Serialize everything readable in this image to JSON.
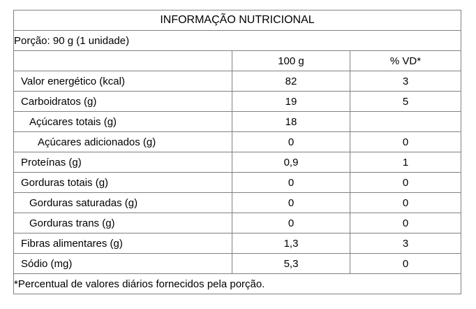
{
  "colors": {
    "border": "#808080",
    "text": "#000000",
    "background": "#ffffff"
  },
  "table": {
    "title": "INFORMAÇÃO NUTRICIONAL",
    "portion": "Porção: 90 g (1 unidade)",
    "columns": {
      "label": "",
      "per100": "100 g",
      "vd": "% VD*"
    },
    "rows": [
      {
        "label": "Valor energético (kcal)",
        "per100": "82",
        "vd": "3",
        "indent": 0
      },
      {
        "label": "Carboidratos (g)",
        "per100": "19",
        "vd": "5",
        "indent": 0
      },
      {
        "label": "Açúcares totais (g)",
        "per100": "18",
        "vd": "",
        "indent": 1
      },
      {
        "label": "Açúcares adicionados (g)",
        "per100": "0",
        "vd": "0",
        "indent": 2
      },
      {
        "label": "Proteínas (g)",
        "per100": "0,9",
        "vd": "1",
        "indent": 0
      },
      {
        "label": "Gorduras totais (g)",
        "per100": "0",
        "vd": "0",
        "indent": 0
      },
      {
        "label": "Gorduras saturadas (g)",
        "per100": "0",
        "vd": "0",
        "indent": 1
      },
      {
        "label": "Gorduras trans (g)",
        "per100": "0",
        "vd": "0",
        "indent": 1
      },
      {
        "label": "Fibras alimentares (g)",
        "per100": "1,3",
        "vd": "3",
        "indent": 0
      },
      {
        "label": "Sódio (mg)",
        "per100": "5,3",
        "vd": "0",
        "indent": 0
      }
    ],
    "footnote": "*Percentual de valores diários fornecidos pela porção."
  }
}
